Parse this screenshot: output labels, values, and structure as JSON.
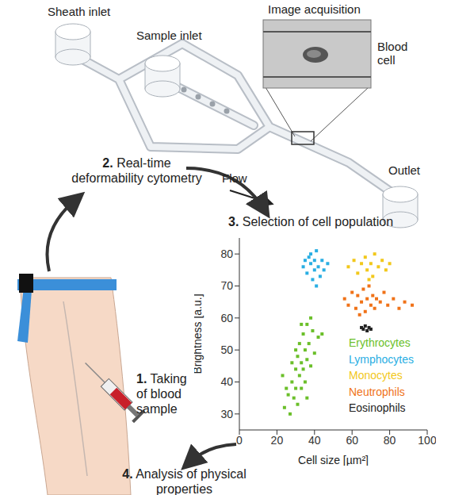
{
  "diagram": {
    "chip": {
      "sheath_inlet": "Sheath inlet",
      "sample_inlet": "Sample inlet",
      "image_acquisition": "Image acquisition",
      "blood_cell": "Blood cell",
      "outlet": "Outlet",
      "flow": "Flow"
    },
    "steps": [
      {
        "number": "1.",
        "text": "Taking of blood sample"
      },
      {
        "number": "2.",
        "text": "Real-time deformability cytometry"
      },
      {
        "number": "3.",
        "text": "Selection of cell population"
      },
      {
        "number": "4.",
        "text": "Analysis of physical properties"
      }
    ]
  },
  "chart_data": {
    "type": "scatter",
    "x_label": "Cell size [µm²]",
    "y_label": "Brightness [a.u.]",
    "xlim": [
      0,
      100
    ],
    "xticks": [
      0,
      20,
      40,
      60,
      80,
      100
    ],
    "ylim": [
      25,
      85
    ],
    "yticks": [
      30,
      40,
      50,
      60,
      70,
      80
    ],
    "marker": "square",
    "series": [
      {
        "name": "Erythrocytes",
        "color": "#6bbf2a",
        "x": [
          24,
          26,
          27,
          28,
          29,
          30,
          30,
          31,
          31,
          32,
          32,
          33,
          33,
          34,
          34,
          35,
          35,
          36,
          36,
          37,
          38,
          39,
          40,
          42,
          28,
          25,
          33,
          36,
          30,
          44,
          23,
          38
        ],
        "values": [
          32,
          36,
          30,
          40,
          35,
          44,
          38,
          48,
          33,
          42,
          52,
          46,
          38,
          55,
          44,
          50,
          40,
          58,
          47,
          52,
          45,
          56,
          49,
          54,
          46,
          38,
          58,
          35,
          50,
          55,
          42,
          60
        ]
      },
      {
        "name": "Lymphocytes",
        "color": "#29aee3",
        "x": [
          34,
          36,
          37,
          38,
          39,
          40,
          40,
          41,
          42,
          43,
          44,
          45,
          38,
          41,
          47,
          35
        ],
        "values": [
          76,
          74,
          79,
          77,
          72,
          78,
          75,
          81,
          76,
          73,
          78,
          75,
          80,
          70,
          77,
          78
        ]
      },
      {
        "name": "Monocytes",
        "color": "#f2c81b",
        "x": [
          58,
          61,
          63,
          65,
          67,
          68,
          70,
          71,
          72,
          74,
          76,
          78,
          80,
          69
        ],
        "values": [
          76,
          78,
          74,
          77,
          79,
          75,
          77,
          73,
          80,
          76,
          78,
          75,
          77,
          72
        ]
      },
      {
        "name": "Neutrophils",
        "color": "#f07218",
        "x": [
          56,
          58,
          60,
          62,
          63,
          65,
          66,
          67,
          68,
          69,
          70,
          71,
          72,
          73,
          75,
          77,
          79,
          82,
          85,
          88,
          92,
          64
        ],
        "values": [
          66,
          64,
          68,
          63,
          67,
          65,
          69,
          62,
          66,
          70,
          64,
          67,
          63,
          66,
          65,
          68,
          64,
          66,
          63,
          65,
          64,
          61
        ]
      },
      {
        "name": "Eosinophils",
        "color": "#222222",
        "x": [
          65,
          66,
          67,
          68,
          69,
          70
        ],
        "values": [
          57,
          56.5,
          57.5,
          56,
          57,
          56.5
        ]
      }
    ]
  }
}
